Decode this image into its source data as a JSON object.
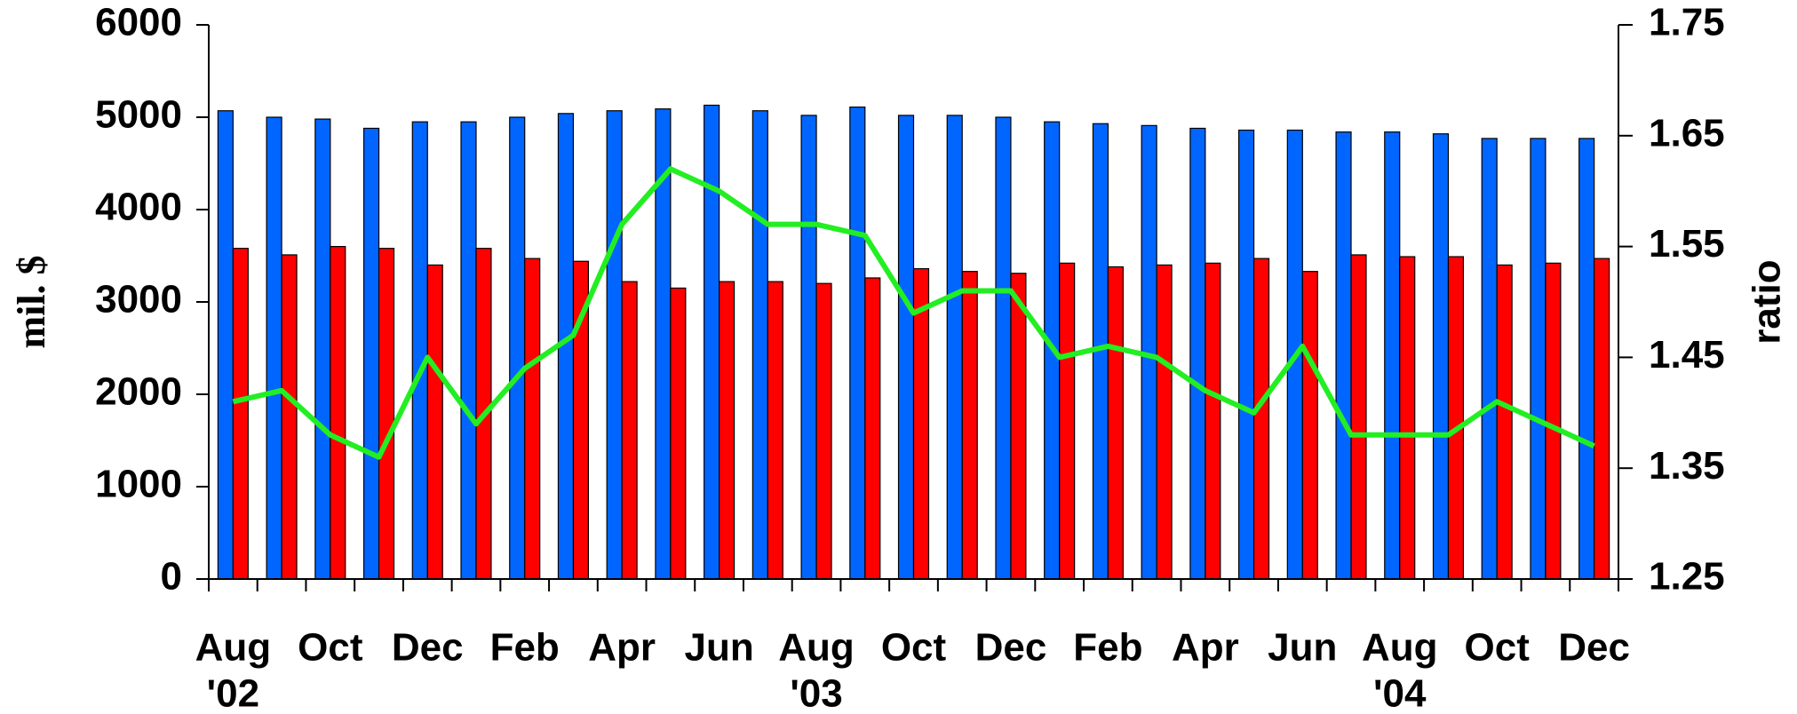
{
  "chart_data": {
    "type": "bar_line",
    "categories": [
      "Aug",
      null,
      "Oct",
      null,
      "Dec",
      null,
      "Feb",
      null,
      "Apr",
      null,
      "Jun",
      null,
      "Aug",
      null,
      "Oct",
      null,
      "Dec",
      null,
      "Feb",
      null,
      "Apr",
      null,
      "Jun",
      null,
      "Aug",
      null,
      "Oct",
      null,
      "Dec"
    ],
    "year_labels": [
      "'02",
      null,
      null,
      null,
      null,
      null,
      null,
      null,
      null,
      null,
      null,
      null,
      "'03",
      null,
      null,
      null,
      null,
      null,
      null,
      null,
      null,
      null,
      null,
      null,
      "'04",
      null,
      null,
      null,
      null
    ],
    "y_label": "mil. $",
    "y2_label": "ratio",
    "ylim": [
      0,
      6000
    ],
    "yticks": [
      0,
      1000,
      2000,
      3000,
      4000,
      5000,
      6000
    ],
    "y2lim": [
      1.25,
      1.75
    ],
    "y2ticks": [
      1.25,
      1.35,
      1.45,
      1.55,
      1.65,
      1.75
    ],
    "series": [
      {
        "type": "bar",
        "color": "#0066ff",
        "values": [
          5070,
          5000,
          4980,
          4880,
          4950,
          4950,
          5000,
          5040,
          5070,
          5090,
          5130,
          5070,
          5020,
          5110,
          5020,
          5020,
          5000,
          4950,
          4930,
          4910,
          4880,
          4860,
          4860,
          4840,
          4840,
          4820,
          4770,
          4770,
          4770
        ]
      },
      {
        "type": "bar",
        "color": "#ff0000",
        "values": [
          3580,
          3510,
          3600,
          3580,
          3400,
          3580,
          3470,
          3440,
          3220,
          3150,
          3220,
          3220,
          3200,
          3260,
          3360,
          3330,
          3310,
          3420,
          3380,
          3400,
          3420,
          3470,
          3330,
          3510,
          3490,
          3490,
          3400,
          3420,
          3470
        ]
      },
      {
        "type": "line",
        "axis": "y2",
        "color": "#22ee22",
        "values": [
          1.41,
          1.42,
          1.38,
          1.36,
          1.45,
          1.39,
          1.44,
          1.47,
          1.57,
          1.62,
          1.6,
          1.57,
          1.57,
          1.56,
          1.49,
          1.51,
          1.51,
          1.45,
          1.46,
          1.45,
          1.42,
          1.4,
          1.46,
          1.38,
          1.38,
          1.38,
          1.41,
          1.39,
          1.37
        ]
      }
    ]
  }
}
